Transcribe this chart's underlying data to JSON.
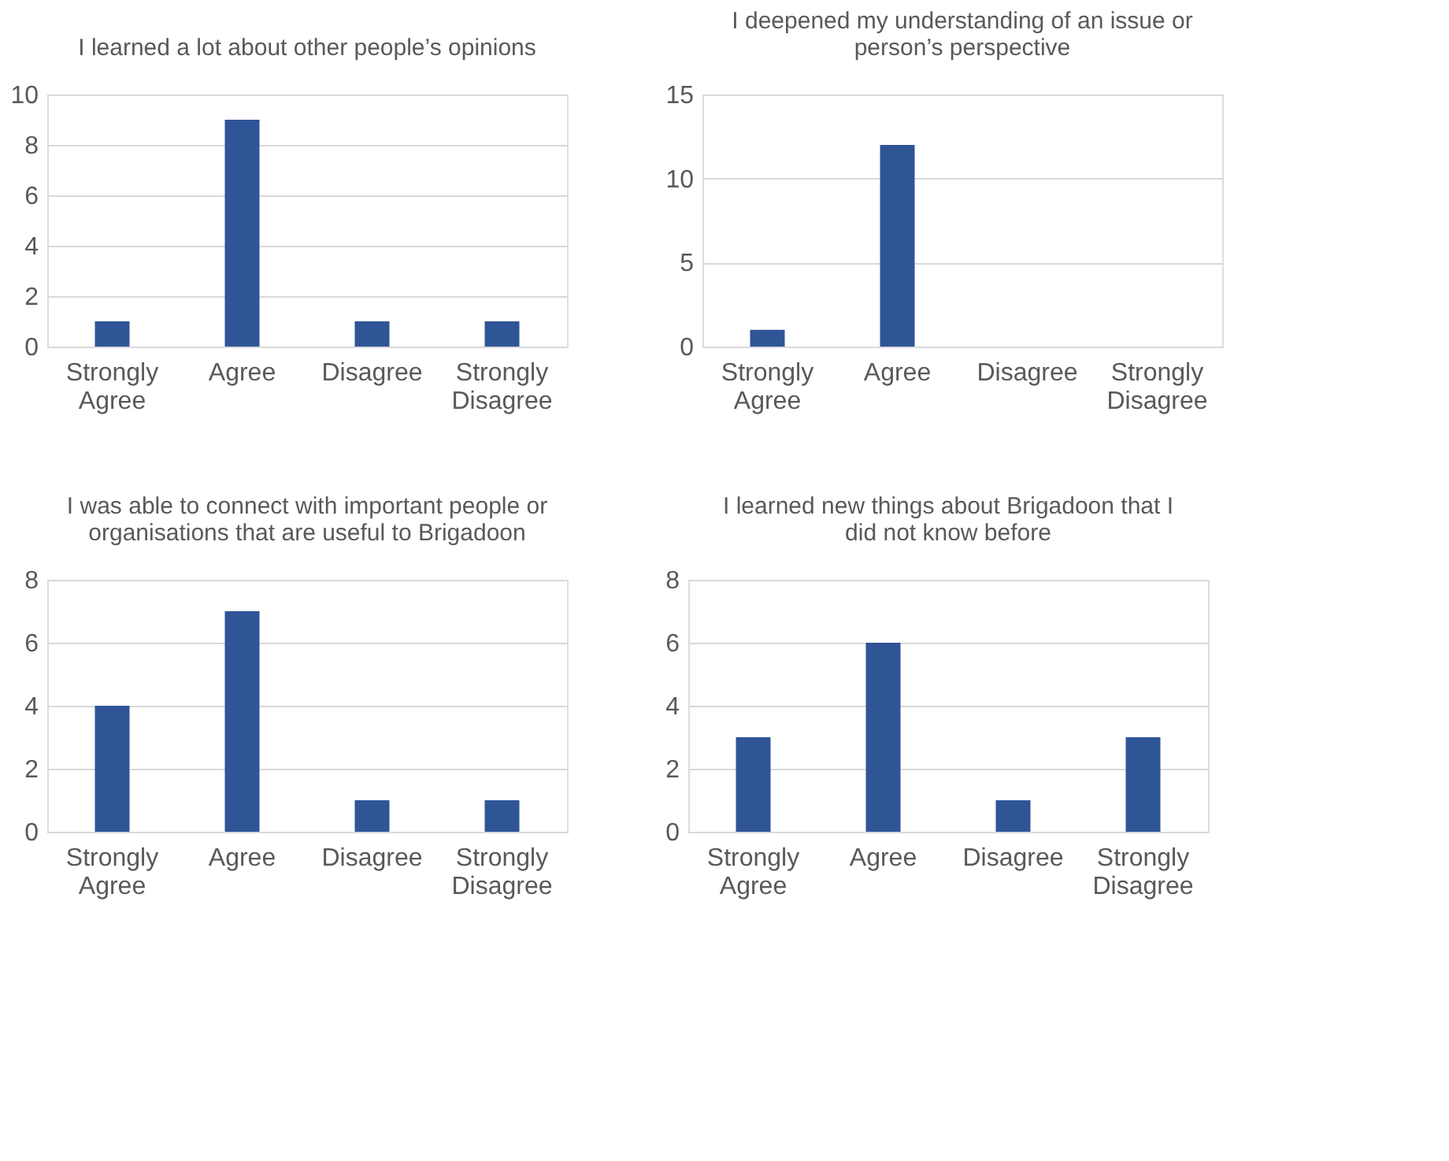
{
  "chart_data": [
    {
      "type": "bar",
      "title": "I learned a lot about other people’s opinions",
      "categories": [
        "Strongly Agree",
        "Agree",
        "Disagree",
        "Strongly Disagree"
      ],
      "values": [
        1,
        9,
        1,
        1
      ],
      "color": "#2f5597",
      "ylim": [
        0,
        10
      ],
      "yticks": [
        0,
        2,
        4,
        6,
        8,
        10
      ],
      "grid": "y"
    },
    {
      "type": "bar",
      "title": "I deepened my understanding of an issue or person’s perspective",
      "categories": [
        "Strongly Agree",
        "Agree",
        "Disagree",
        "Strongly Disagree"
      ],
      "values": [
        1,
        12,
        0,
        0
      ],
      "color": "#2f5597",
      "ylim": [
        0,
        15
      ],
      "yticks": [
        0,
        5,
        10,
        15
      ],
      "grid": "y"
    },
    {
      "type": "bar",
      "title": "I was able to connect with important people or organisations that are useful to Brigadoon",
      "categories": [
        "Strongly Agree",
        "Agree",
        "Disagree",
        "Strongly Disagree"
      ],
      "values": [
        4,
        7,
        1,
        1
      ],
      "color": "#2f5597",
      "ylim": [
        0,
        8
      ],
      "yticks": [
        0,
        2,
        4,
        6,
        8
      ],
      "grid": "y"
    },
    {
      "type": "bar",
      "title": "I learned new things about Brigadoon that I did not know before",
      "categories": [
        "Strongly Agree",
        "Agree",
        "Disagree",
        "Strongly Disagree"
      ],
      "values": [
        3,
        6,
        1,
        3
      ],
      "color": "#2f5597",
      "ylim": [
        0,
        8
      ],
      "yticks": [
        0,
        2,
        4,
        6,
        8
      ],
      "grid": "y"
    }
  ]
}
